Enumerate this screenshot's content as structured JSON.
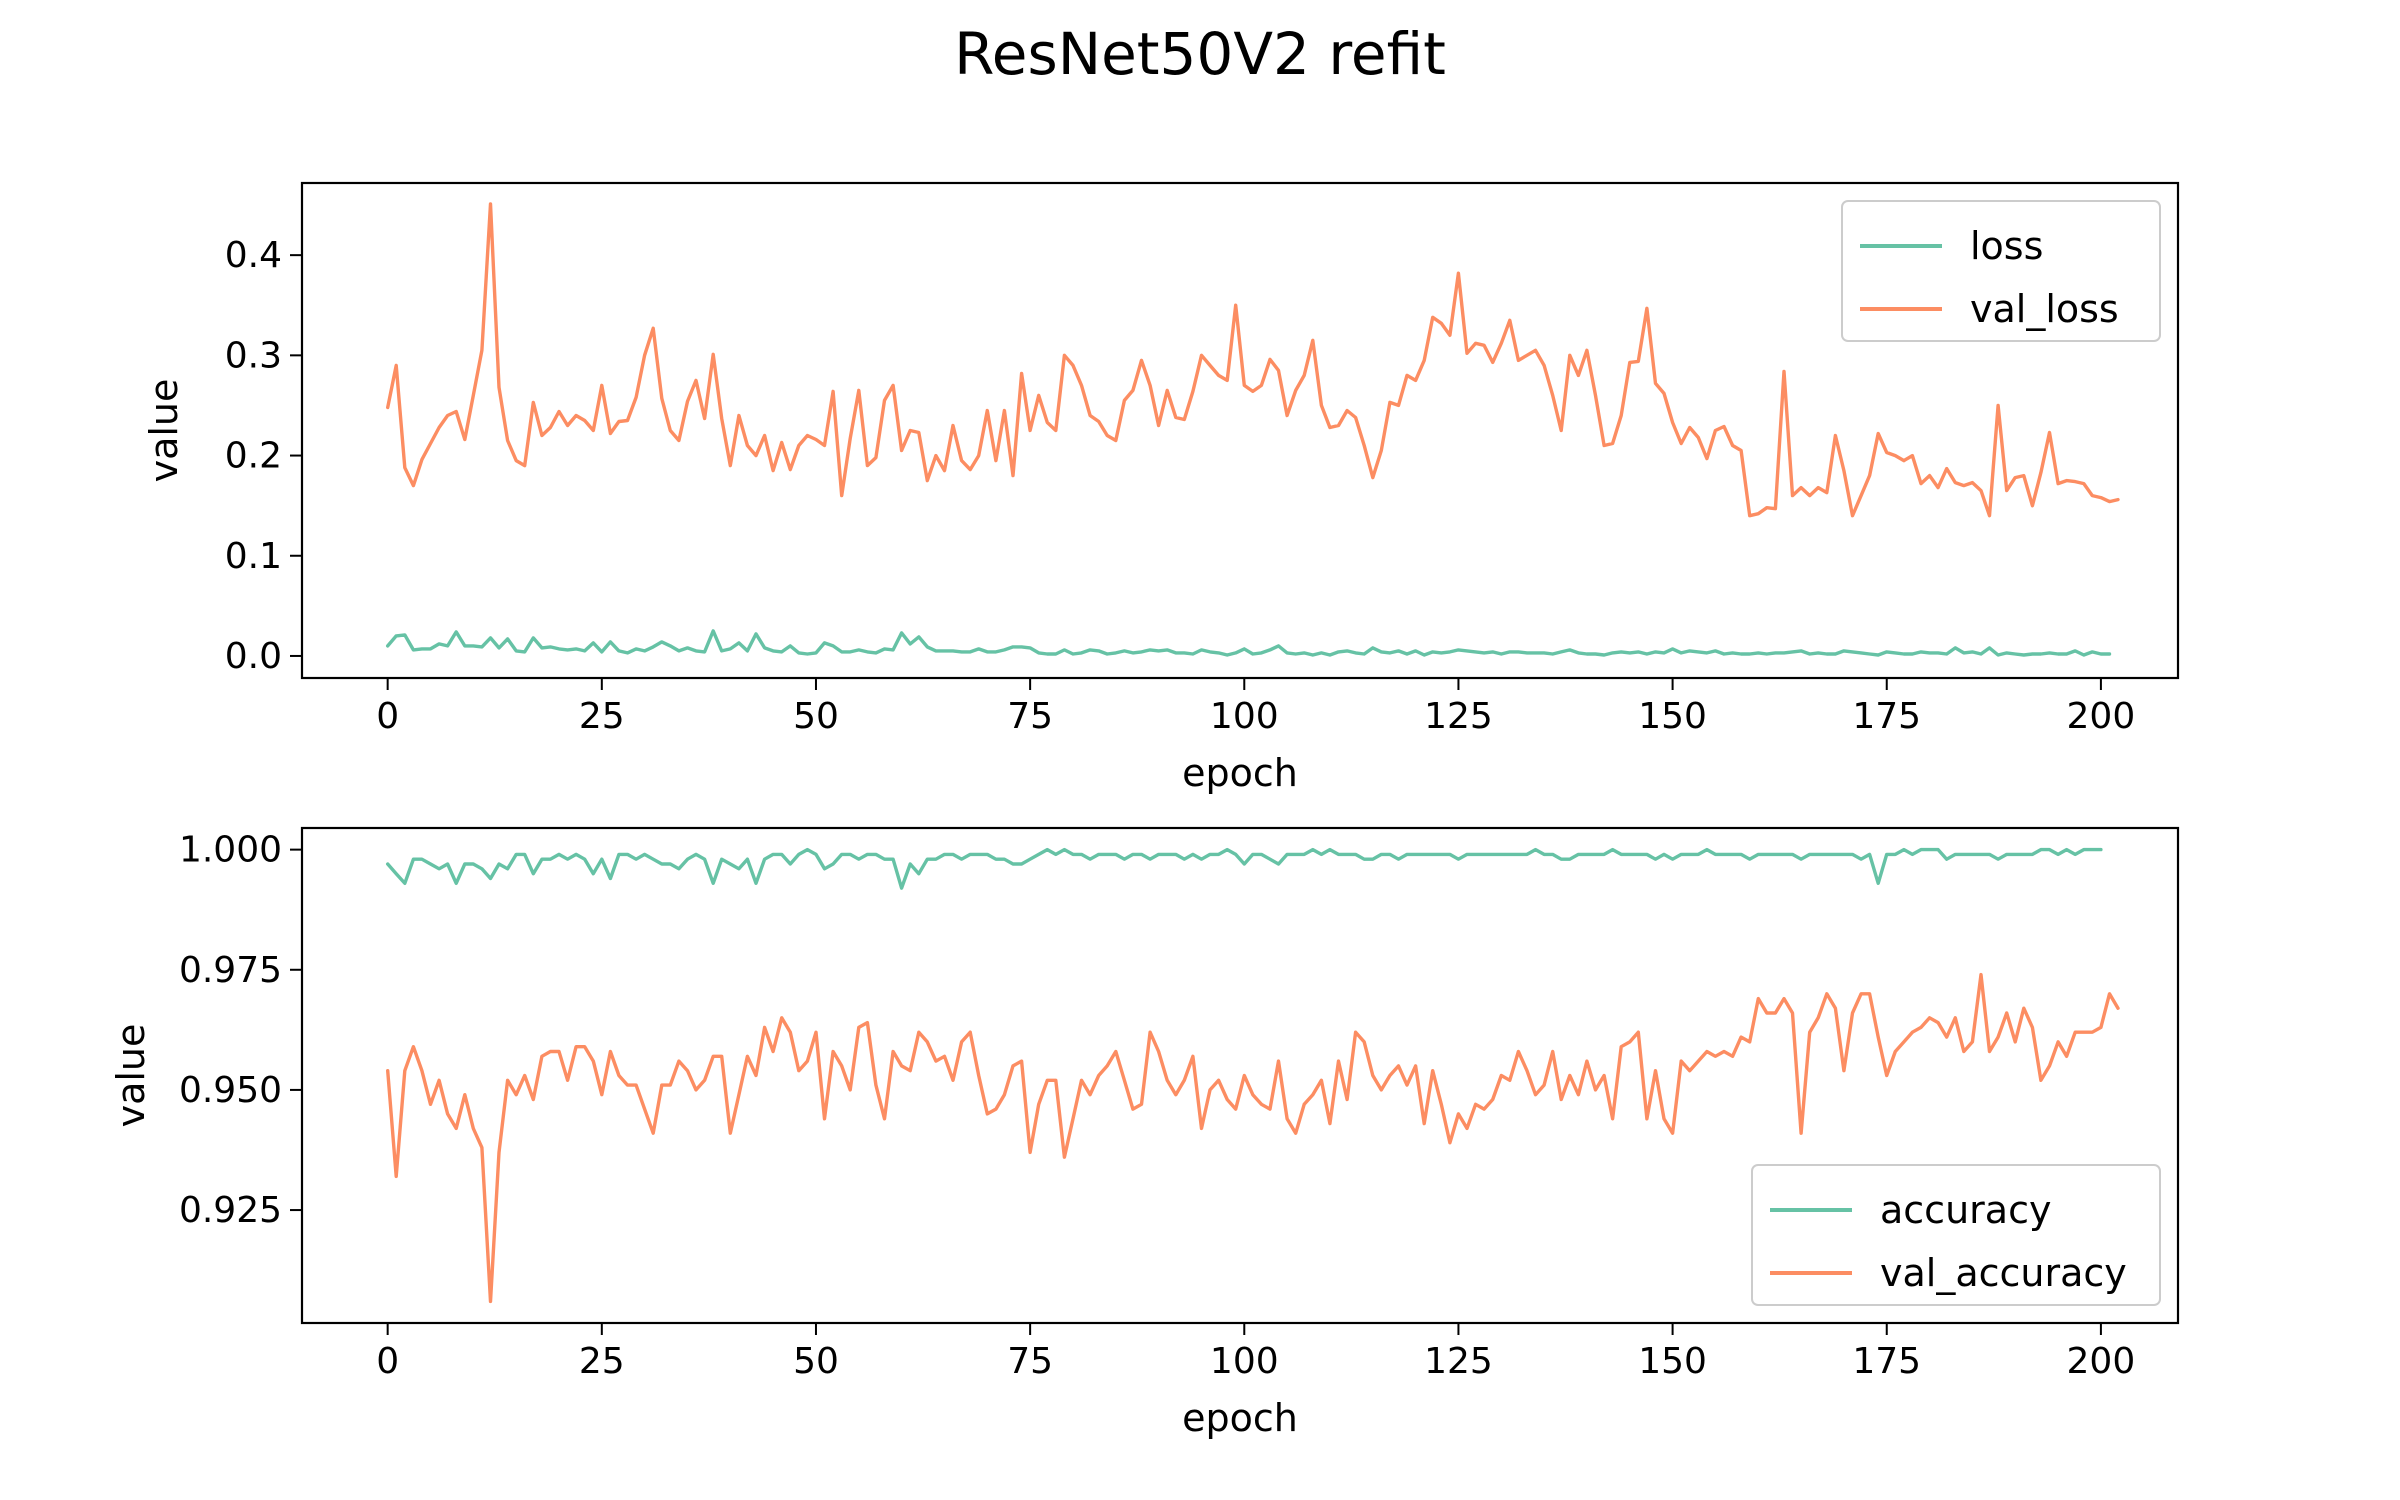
{
  "figure": {
    "title": "ResNet50V2 refit"
  },
  "colors": {
    "train": "#66c2a5",
    "val": "#fc8d62",
    "axes": "#000000",
    "legend_border": "#cccccc"
  },
  "chart_data": [
    {
      "type": "line",
      "xlabel": "epoch",
      "ylabel": "value",
      "xlim": [
        -10,
        209
      ],
      "ylim": [
        -0.022,
        0.472
      ],
      "xticks": [
        0,
        25,
        50,
        75,
        100,
        125,
        150,
        175,
        200
      ],
      "yticks": [
        0.0,
        0.1,
        0.2,
        0.3,
        0.4
      ],
      "ytick_labels": [
        "0.0",
        "0.1",
        "0.2",
        "0.3",
        "0.4"
      ],
      "legend": {
        "position": "upper-right"
      },
      "series": [
        {
          "name": "loss",
          "color_key": "train",
          "values": [
            0.01,
            0.02,
            0.021,
            0.006,
            0.007,
            0.007,
            0.012,
            0.01,
            0.024,
            0.01,
            0.01,
            0.009,
            0.018,
            0.008,
            0.017,
            0.005,
            0.004,
            0.018,
            0.008,
            0.009,
            0.007,
            0.006,
            0.007,
            0.005,
            0.013,
            0.004,
            0.014,
            0.005,
            0.003,
            0.007,
            0.005,
            0.009,
            0.014,
            0.01,
            0.005,
            0.008,
            0.005,
            0.004,
            0.025,
            0.005,
            0.007,
            0.013,
            0.005,
            0.022,
            0.008,
            0.005,
            0.004,
            0.01,
            0.003,
            0.002,
            0.003,
            0.013,
            0.01,
            0.004,
            0.004,
            0.006,
            0.004,
            0.003,
            0.007,
            0.006,
            0.023,
            0.012,
            0.019,
            0.009,
            0.005,
            0.005,
            0.005,
            0.004,
            0.004,
            0.007,
            0.004,
            0.004,
            0.006,
            0.009,
            0.009,
            0.008,
            0.003,
            0.002,
            0.002,
            0.006,
            0.002,
            0.003,
            0.006,
            0.005,
            0.002,
            0.003,
            0.005,
            0.003,
            0.004,
            0.006,
            0.005,
            0.006,
            0.003,
            0.003,
            0.002,
            0.006,
            0.004,
            0.003,
            0.001,
            0.003,
            0.007,
            0.002,
            0.003,
            0.006,
            0.01,
            0.003,
            0.002,
            0.003,
            0.001,
            0.003,
            0.001,
            0.004,
            0.005,
            0.003,
            0.002,
            0.008,
            0.004,
            0.003,
            0.005,
            0.002,
            0.005,
            0.001,
            0.004,
            0.003,
            0.004,
            0.006,
            0.005,
            0.004,
            0.003,
            0.004,
            0.002,
            0.004,
            0.004,
            0.003,
            0.003,
            0.003,
            0.002,
            0.004,
            0.006,
            0.003,
            0.002,
            0.002,
            0.001,
            0.003,
            0.004,
            0.003,
            0.004,
            0.002,
            0.004,
            0.003,
            0.007,
            0.003,
            0.005,
            0.004,
            0.003,
            0.005,
            0.002,
            0.003,
            0.002,
            0.002,
            0.003,
            0.002,
            0.003,
            0.003,
            0.004,
            0.005,
            0.002,
            0.003,
            0.002,
            0.002,
            0.005,
            0.004,
            0.003,
            0.002,
            0.001,
            0.004,
            0.003,
            0.002,
            0.002,
            0.004,
            0.003,
            0.003,
            0.002,
            0.008,
            0.003,
            0.004,
            0.002,
            0.008,
            0.001,
            0.003,
            0.002,
            0.001,
            0.002,
            0.002,
            0.003,
            0.002,
            0.002,
            0.005,
            0.001,
            0.004,
            0.002,
            0.002
          ]
        },
        {
          "name": "val_loss",
          "color_key": "val",
          "values": [
            0.248,
            0.29,
            0.188,
            0.17,
            0.196,
            0.212,
            0.228,
            0.24,
            0.244,
            0.216,
            0.26,
            0.305,
            0.451,
            0.268,
            0.215,
            0.195,
            0.19,
            0.253,
            0.22,
            0.228,
            0.244,
            0.23,
            0.24,
            0.235,
            0.225,
            0.27,
            0.222,
            0.234,
            0.235,
            0.258,
            0.3,
            0.327,
            0.257,
            0.225,
            0.215,
            0.254,
            0.275,
            0.237,
            0.301,
            0.237,
            0.19,
            0.24,
            0.21,
            0.2,
            0.22,
            0.185,
            0.213,
            0.186,
            0.21,
            0.22,
            0.216,
            0.21,
            0.264,
            0.16,
            0.217,
            0.265,
            0.19,
            0.198,
            0.255,
            0.27,
            0.205,
            0.225,
            0.223,
            0.175,
            0.2,
            0.185,
            0.23,
            0.195,
            0.186,
            0.2,
            0.245,
            0.195,
            0.245,
            0.18,
            0.282,
            0.225,
            0.26,
            0.233,
            0.225,
            0.3,
            0.29,
            0.27,
            0.24,
            0.234,
            0.22,
            0.215,
            0.255,
            0.265,
            0.295,
            0.27,
            0.23,
            0.265,
            0.238,
            0.236,
            0.264,
            0.3,
            0.29,
            0.28,
            0.275,
            0.35,
            0.27,
            0.264,
            0.27,
            0.296,
            0.285,
            0.24,
            0.265,
            0.28,
            0.315,
            0.25,
            0.228,
            0.23,
            0.245,
            0.238,
            0.21,
            0.178,
            0.205,
            0.253,
            0.25,
            0.28,
            0.275,
            0.295,
            0.338,
            0.332,
            0.32,
            0.382,
            0.302,
            0.312,
            0.31,
            0.293,
            0.312,
            0.335,
            0.295,
            0.3,
            0.305,
            0.29,
            0.26,
            0.225,
            0.3,
            0.28,
            0.305,
            0.26,
            0.21,
            0.212,
            0.24,
            0.293,
            0.294,
            0.347,
            0.272,
            0.262,
            0.233,
            0.212,
            0.228,
            0.218,
            0.197,
            0.225,
            0.229,
            0.21,
            0.205,
            0.14,
            0.142,
            0.148,
            0.147,
            0.284,
            0.16,
            0.168,
            0.16,
            0.168,
            0.163,
            0.22,
            0.185,
            0.14,
            0.16,
            0.18,
            0.222,
            0.203,
            0.2,
            0.195,
            0.2,
            0.172,
            0.18,
            0.168,
            0.187,
            0.173,
            0.17,
            0.173,
            0.165,
            0.14,
            0.25,
            0.165,
            0.178,
            0.18,
            0.15,
            0.183,
            0.223,
            0.172,
            0.175,
            0.174,
            0.172,
            0.16,
            0.158,
            0.154,
            0.156
          ]
        }
      ]
    },
    {
      "type": "line",
      "xlabel": "epoch",
      "ylabel": "value",
      "xlim": [
        -10,
        209
      ],
      "ylim": [
        0.9015,
        1.0045
      ],
      "xticks": [
        0,
        25,
        50,
        75,
        100,
        125,
        150,
        175,
        200
      ],
      "yticks": [
        0.925,
        0.95,
        0.975,
        1.0
      ],
      "ytick_labels": [
        "0.925",
        "0.950",
        "0.975",
        "1.000"
      ],
      "legend": {
        "position": "lower-right"
      },
      "series": [
        {
          "name": "accuracy",
          "color_key": "train",
          "values": [
            0.997,
            0.995,
            0.993,
            0.998,
            0.998,
            0.997,
            0.996,
            0.997,
            0.993,
            0.997,
            0.997,
            0.996,
            0.994,
            0.997,
            0.996,
            0.999,
            0.999,
            0.995,
            0.998,
            0.998,
            0.999,
            0.998,
            0.999,
            0.998,
            0.995,
            0.998,
            0.994,
            0.999,
            0.999,
            0.998,
            0.999,
            0.998,
            0.997,
            0.997,
            0.996,
            0.998,
            0.999,
            0.998,
            0.993,
            0.998,
            0.997,
            0.996,
            0.998,
            0.993,
            0.998,
            0.999,
            0.999,
            0.997,
            0.999,
            1.0,
            0.999,
            0.996,
            0.997,
            0.999,
            0.999,
            0.998,
            0.999,
            0.999,
            0.998,
            0.998,
            0.992,
            0.997,
            0.995,
            0.998,
            0.998,
            0.999,
            0.999,
            0.998,
            0.999,
            0.999,
            0.999,
            0.998,
            0.998,
            0.997,
            0.997,
            0.998,
            0.999,
            1.0,
            0.999,
            1.0,
            0.999,
            0.999,
            0.998,
            0.999,
            0.999,
            0.999,
            0.998,
            0.999,
            0.999,
            0.998,
            0.999,
            0.999,
            0.999,
            0.998,
            0.999,
            0.998,
            0.999,
            0.999,
            1.0,
            0.999,
            0.997,
            0.999,
            0.999,
            0.998,
            0.997,
            0.999,
            0.999,
            0.999,
            1.0,
            0.999,
            1.0,
            0.999,
            0.999,
            0.999,
            0.998,
            0.998,
            0.999,
            0.999,
            0.998,
            0.999,
            0.999,
            0.999,
            0.999,
            0.999,
            0.999,
            0.998,
            0.999,
            0.999,
            0.999,
            0.999,
            0.999,
            0.999,
            0.999,
            0.999,
            1.0,
            0.999,
            0.999,
            0.998,
            0.998,
            0.999,
            0.999,
            0.999,
            0.999,
            1.0,
            0.999,
            0.999,
            0.999,
            0.999,
            0.998,
            0.999,
            0.998,
            0.999,
            0.999,
            0.999,
            1.0,
            0.999,
            0.999,
            0.999,
            0.999,
            0.998,
            0.999,
            0.999,
            0.999,
            0.999,
            0.999,
            0.998,
            0.999,
            0.999,
            0.999,
            0.999,
            0.999,
            0.999,
            0.998,
            0.999,
            0.993,
            0.999,
            0.999,
            1.0,
            0.999,
            1.0,
            1.0,
            1.0,
            0.998,
            0.999,
            0.999,
            0.999,
            0.999,
            0.999,
            0.998,
            0.999,
            0.999,
            0.999,
            0.999,
            1.0,
            1.0,
            0.999,
            1.0,
            0.999,
            1.0,
            1.0,
            1.0
          ]
        },
        {
          "name": "val_accuracy",
          "color_key": "val",
          "values": [
            0.954,
            0.932,
            0.954,
            0.959,
            0.954,
            0.947,
            0.952,
            0.945,
            0.942,
            0.949,
            0.942,
            0.938,
            0.906,
            0.937,
            0.952,
            0.949,
            0.953,
            0.948,
            0.957,
            0.958,
            0.958,
            0.952,
            0.959,
            0.959,
            0.956,
            0.949,
            0.958,
            0.953,
            0.951,
            0.951,
            0.946,
            0.941,
            0.951,
            0.951,
            0.956,
            0.954,
            0.95,
            0.952,
            0.957,
            0.957,
            0.941,
            0.949,
            0.957,
            0.953,
            0.963,
            0.958,
            0.965,
            0.962,
            0.954,
            0.956,
            0.962,
            0.944,
            0.958,
            0.955,
            0.95,
            0.963,
            0.964,
            0.951,
            0.944,
            0.958,
            0.955,
            0.954,
            0.962,
            0.96,
            0.956,
            0.957,
            0.952,
            0.96,
            0.962,
            0.953,
            0.945,
            0.946,
            0.949,
            0.955,
            0.956,
            0.937,
            0.947,
            0.952,
            0.952,
            0.936,
            0.944,
            0.952,
            0.949,
            0.953,
            0.955,
            0.958,
            0.952,
            0.946,
            0.947,
            0.962,
            0.958,
            0.952,
            0.949,
            0.952,
            0.957,
            0.942,
            0.95,
            0.952,
            0.948,
            0.946,
            0.953,
            0.949,
            0.947,
            0.946,
            0.956,
            0.944,
            0.941,
            0.947,
            0.949,
            0.952,
            0.943,
            0.956,
            0.948,
            0.962,
            0.96,
            0.953,
            0.95,
            0.953,
            0.955,
            0.951,
            0.955,
            0.943,
            0.954,
            0.947,
            0.939,
            0.945,
            0.942,
            0.947,
            0.946,
            0.948,
            0.953,
            0.952,
            0.958,
            0.954,
            0.949,
            0.951,
            0.958,
            0.948,
            0.953,
            0.949,
            0.956,
            0.95,
            0.953,
            0.944,
            0.959,
            0.96,
            0.962,
            0.944,
            0.954,
            0.944,
            0.941,
            0.956,
            0.954,
            0.956,
            0.958,
            0.957,
            0.958,
            0.957,
            0.961,
            0.96,
            0.969,
            0.966,
            0.966,
            0.969,
            0.966,
            0.941,
            0.962,
            0.965,
            0.97,
            0.967,
            0.954,
            0.966,
            0.97,
            0.97,
            0.961,
            0.953,
            0.958,
            0.96,
            0.962,
            0.963,
            0.965,
            0.964,
            0.961,
            0.965,
            0.958,
            0.96,
            0.974,
            0.958,
            0.961,
            0.966,
            0.96,
            0.967,
            0.963,
            0.952,
            0.955,
            0.96,
            0.957,
            0.962,
            0.962,
            0.962,
            0.963,
            0.97,
            0.967
          ]
        }
      ]
    }
  ]
}
